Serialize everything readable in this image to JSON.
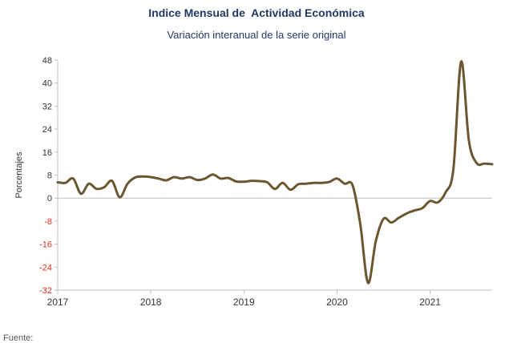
{
  "chart_data": {
    "type": "line",
    "title": "Indice Mensual de  Actividad Económica",
    "subtitle": "Variación interanual de la serie original",
    "ylabel": "Porcentajes",
    "xlabel": "",
    "ylim": [
      -32,
      48
    ],
    "yticks": [
      "48",
      "40",
      "32",
      "24",
      "16",
      "8",
      "0",
      "-8",
      "-16",
      "-24",
      "-32"
    ],
    "xticks": [
      "2017",
      "2018",
      "2019",
      "2020",
      "2021"
    ],
    "xlim": [
      "2017-01",
      "2021-09"
    ],
    "grid": false,
    "negative_tick_color": "#e0301e",
    "positive_tick_color": "#333333",
    "line_color": "#6b5630",
    "series": [
      {
        "points": [
          [
            "2017-01",
            5.5
          ],
          [
            "2017-02",
            5.3
          ],
          [
            "2017-03",
            6.8
          ],
          [
            "2017-04",
            1.5
          ],
          [
            "2017-05",
            5.0
          ],
          [
            "2017-06",
            3.2
          ],
          [
            "2017-07",
            3.8
          ],
          [
            "2017-08",
            6.0
          ],
          [
            "2017-09",
            0.3
          ],
          [
            "2017-10",
            5.0
          ],
          [
            "2017-11",
            7.2
          ],
          [
            "2017-12",
            7.5
          ],
          [
            "2018-01",
            7.3
          ],
          [
            "2018-02",
            6.8
          ],
          [
            "2018-03",
            6.2
          ],
          [
            "2018-04",
            7.3
          ],
          [
            "2018-05",
            6.8
          ],
          [
            "2018-06",
            7.3
          ],
          [
            "2018-07",
            6.3
          ],
          [
            "2018-08",
            6.8
          ],
          [
            "2018-09",
            8.2
          ],
          [
            "2018-10",
            6.8
          ],
          [
            "2018-11",
            7.0
          ],
          [
            "2018-12",
            5.8
          ],
          [
            "2019-01",
            5.7
          ],
          [
            "2019-02",
            6.0
          ],
          [
            "2019-03",
            5.9
          ],
          [
            "2019-04",
            5.5
          ],
          [
            "2019-05",
            3.2
          ],
          [
            "2019-06",
            5.3
          ],
          [
            "2019-07",
            2.9
          ],
          [
            "2019-08",
            4.8
          ],
          [
            "2019-09",
            5.0
          ],
          [
            "2019-10",
            5.3
          ],
          [
            "2019-11",
            5.3
          ],
          [
            "2019-12",
            5.6
          ],
          [
            "2020-01",
            6.8
          ],
          [
            "2020-02",
            5.0
          ],
          [
            "2020-03",
            4.5
          ],
          [
            "2020-04",
            -9.0
          ],
          [
            "2020-05",
            -29.5
          ],
          [
            "2020-06",
            -15.0
          ],
          [
            "2020-07",
            -7.2
          ],
          [
            "2020-08",
            -8.5
          ],
          [
            "2020-09",
            -6.8
          ],
          [
            "2020-10",
            -5.3
          ],
          [
            "2020-11",
            -4.3
          ],
          [
            "2020-12",
            -3.5
          ],
          [
            "2021-01",
            -1.0
          ],
          [
            "2021-02",
            -1.5
          ],
          [
            "2021-03",
            2.0
          ],
          [
            "2021-04",
            10.0
          ],
          [
            "2021-05",
            47.5
          ],
          [
            "2021-06",
            20.0
          ],
          [
            "2021-07",
            12.2
          ],
          [
            "2021-08",
            12.0
          ],
          [
            "2021-09",
            11.8
          ]
        ]
      }
    ]
  },
  "footer": {
    "text": "Fuente:"
  }
}
